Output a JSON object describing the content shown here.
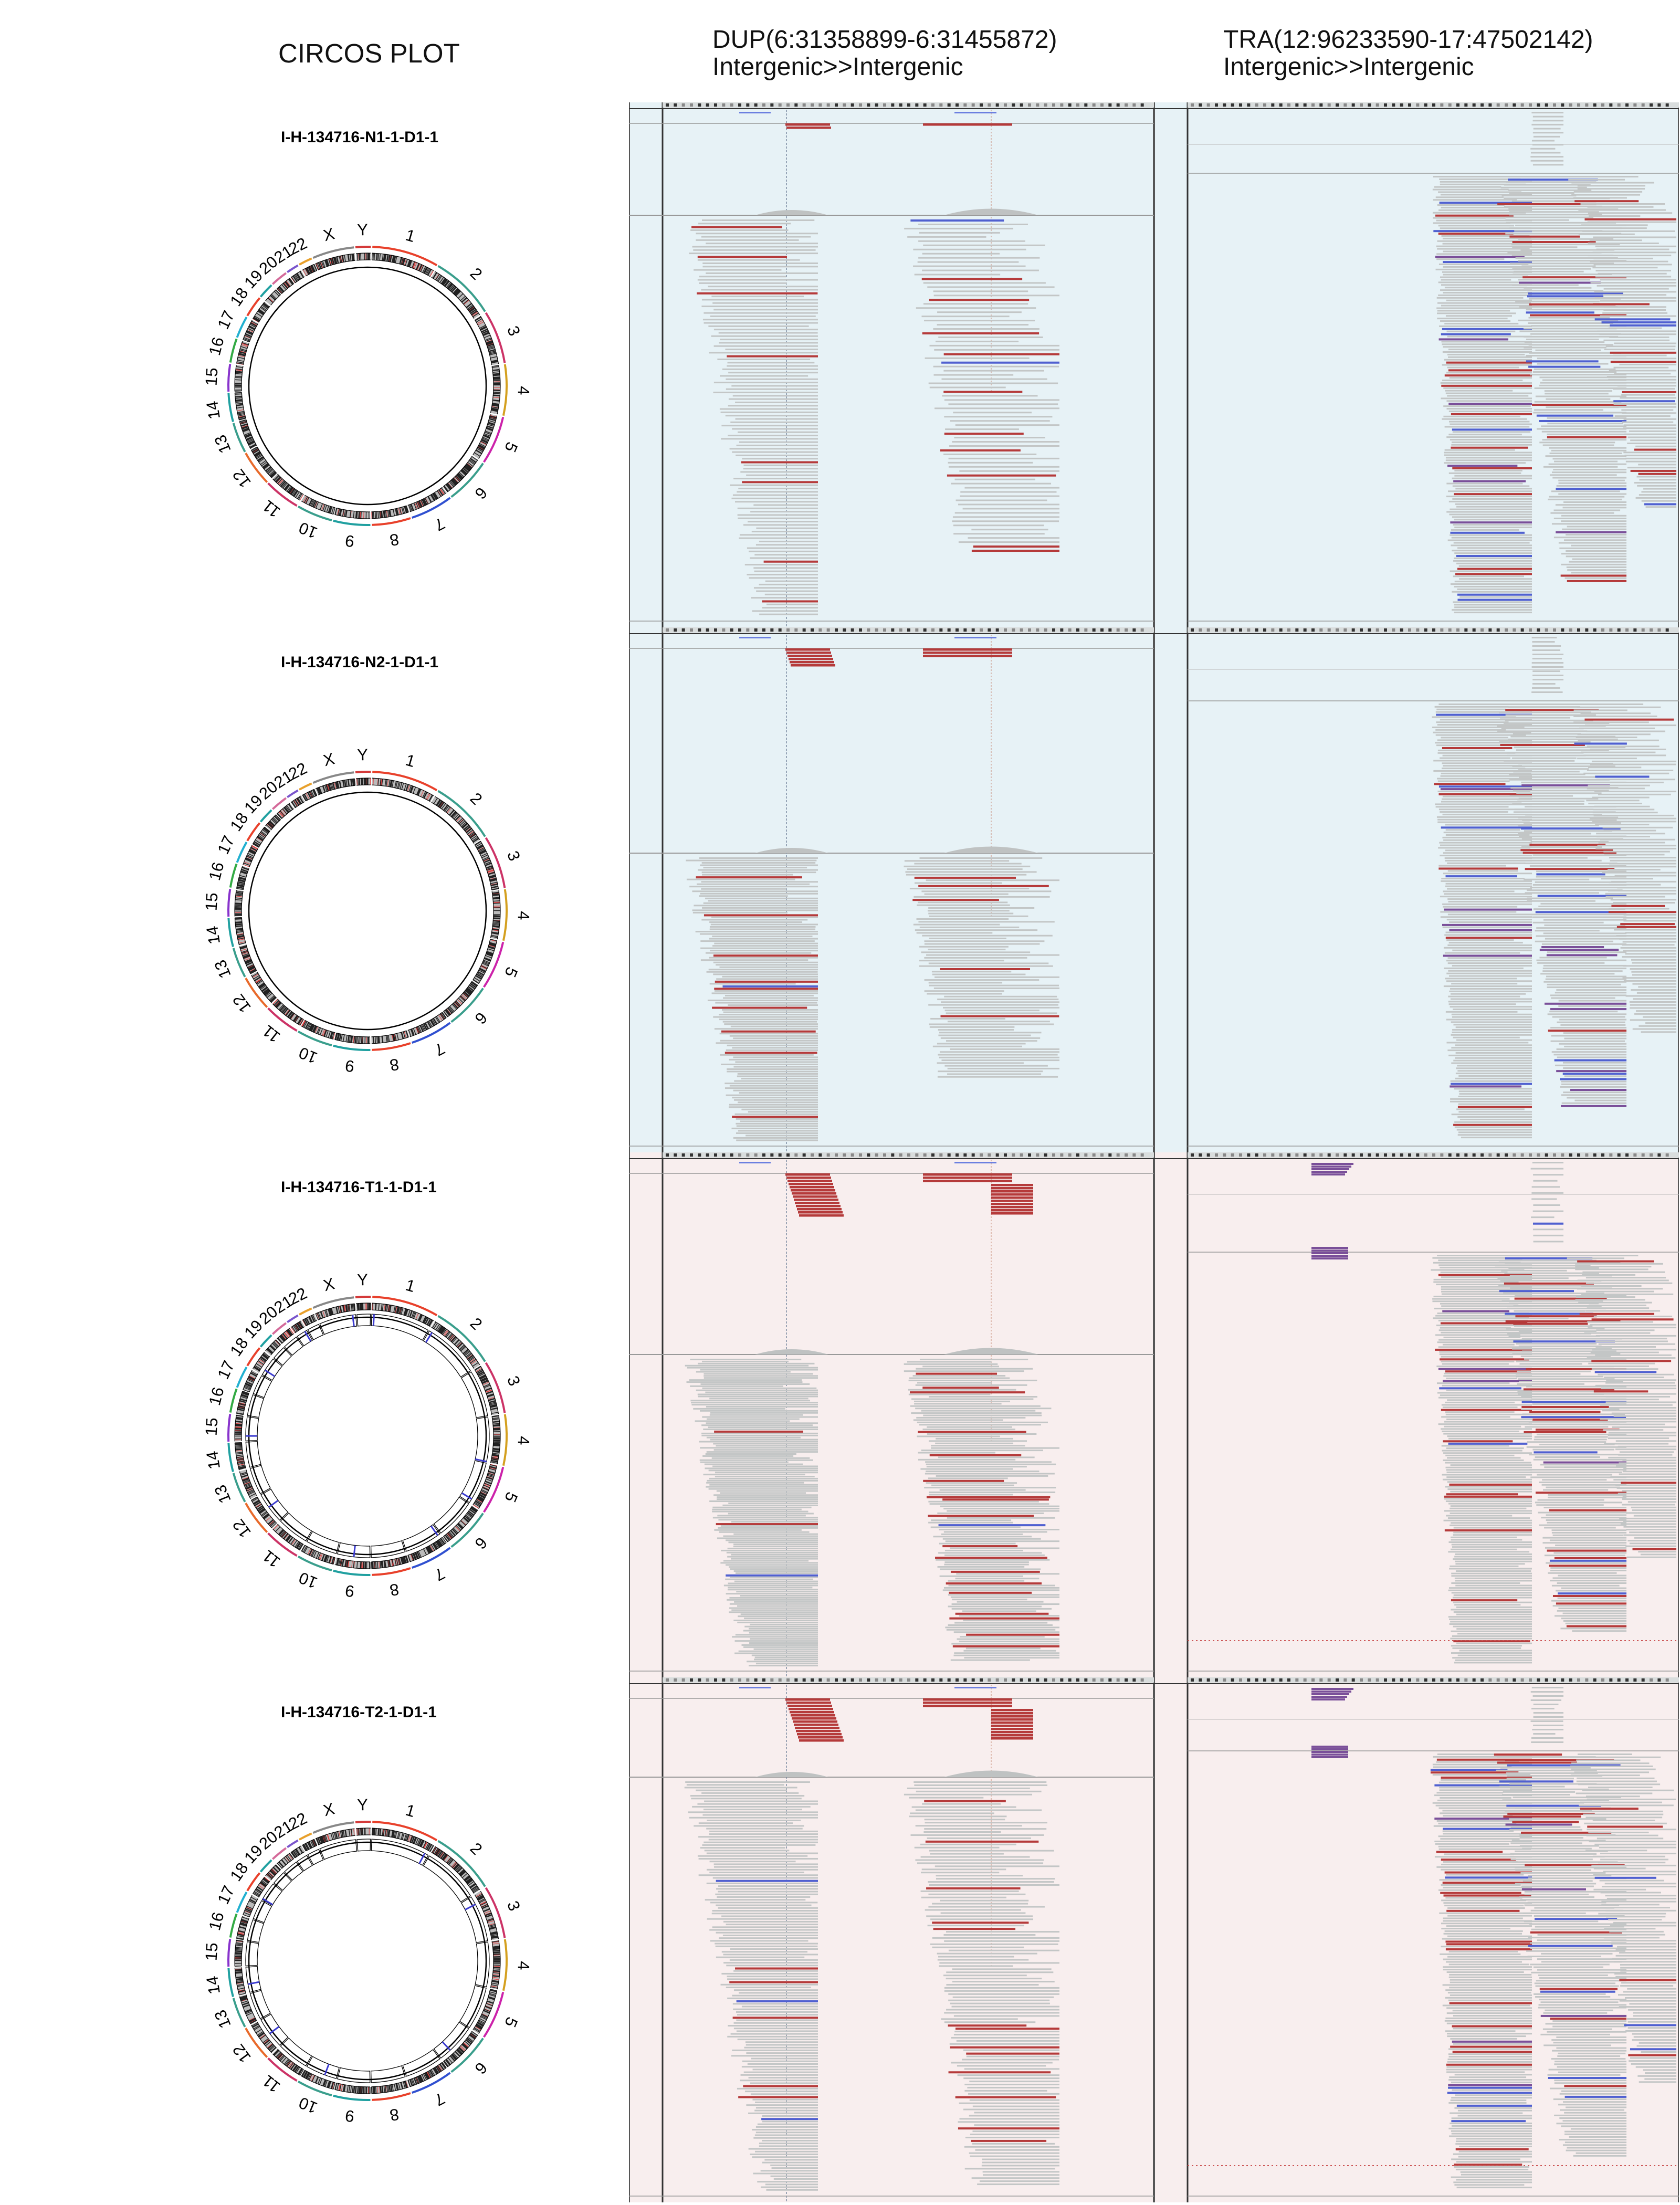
{
  "headers": {
    "circos": "CIRCOS PLOT",
    "dup": {
      "event": "DUP(6:31358899-6:31455872)",
      "annotation": "Intergenic>>Intergenic"
    },
    "tra": {
      "event": "TRA(12:96233590-17:47502142)",
      "annotation": "Intergenic>>Intergenic"
    }
  },
  "chromosomes": [
    "1",
    "2",
    "3",
    "4",
    "5",
    "6",
    "7",
    "8",
    "9",
    "10",
    "11",
    "12",
    "13",
    "14",
    "15",
    "16",
    "17",
    "18",
    "19",
    "20",
    "21",
    "22",
    "X",
    "Y"
  ],
  "samples": [
    {
      "label": "I-H-134716-N1-1-D1-1",
      "type": "normal",
      "panel_bg": "#e7f2f6"
    },
    {
      "label": "I-H-134716-N2-1-D1-1",
      "type": "normal",
      "panel_bg": "#e7f2f6"
    },
    {
      "label": "I-H-134716-T1-1-D1-1",
      "type": "tumor",
      "panel_bg": "#f8eeee"
    },
    {
      "label": "I-H-134716-T2-1-D1-1",
      "type": "tumor",
      "panel_bg": "#f8eeee"
    }
  ],
  "colors": {
    "normal_bg": "#e7f2f6",
    "tumor_bg": "#f8eeee",
    "read_gray": "#c3c6c6",
    "discordant_red": "#b53a3a",
    "discordant_blue": "#5060d0",
    "discordant_purple": "#7a4f99"
  }
}
